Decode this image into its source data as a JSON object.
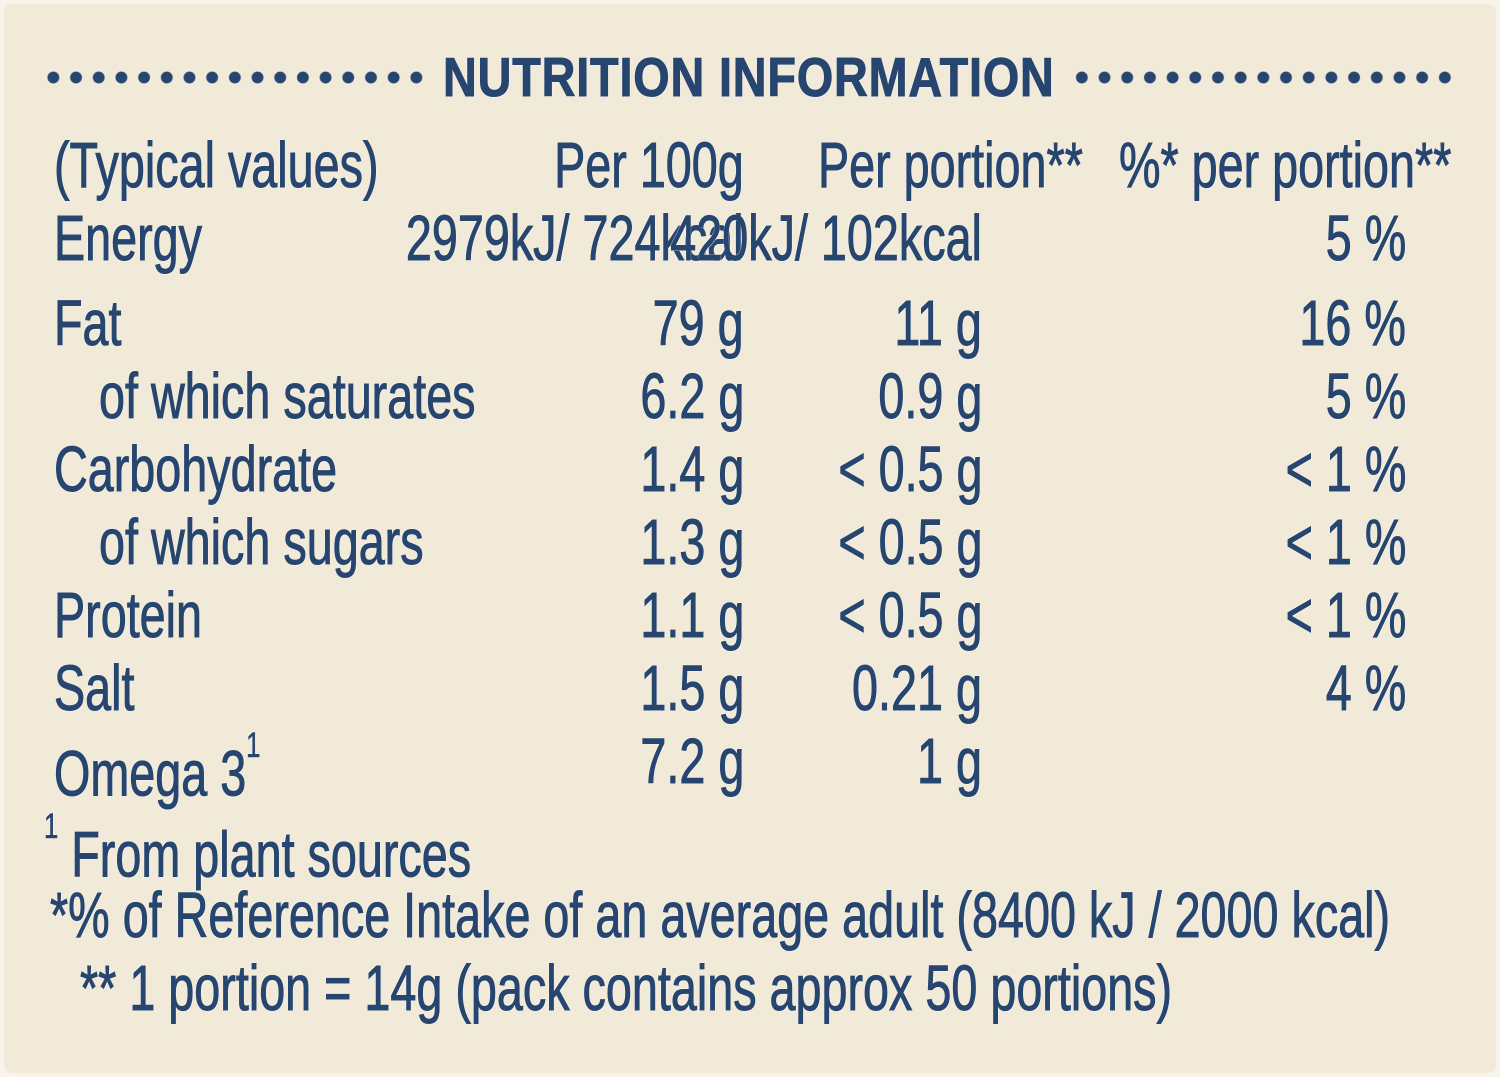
{
  "colors": {
    "background": "#f2ead9",
    "ink": "#26456f"
  },
  "title": "NUTRITION INFORMATION",
  "table": {
    "header": {
      "typical_values": "(Typical values)",
      "per_100g": "Per 100g",
      "per_portion": "Per portion**",
      "ri_per_portion": "%* per portion**"
    },
    "rows": [
      {
        "label": "Energy",
        "per_100g": "2979kJ/ 724kcal",
        "per_portion": "420kJ/ 102kcal",
        "ri_percent": "5 %"
      },
      {
        "label": "Fat",
        "per_100g": "79 g",
        "per_portion": "11 g",
        "ri_percent": "16 %"
      },
      {
        "label": "of which saturates",
        "per_100g": "6.2 g",
        "per_portion": "0.9 g",
        "ri_percent": "5 %"
      },
      {
        "label": "Carbohydrate",
        "per_100g": "1.4 g",
        "per_portion": "< 0.5 g",
        "ri_percent": "< 1 %"
      },
      {
        "label": "of which sugars",
        "per_100g": "1.3 g",
        "per_portion": "< 0.5 g",
        "ri_percent": "< 1 %"
      },
      {
        "label": "Protein",
        "per_100g": "1.1 g",
        "per_portion": "< 0.5 g",
        "ri_percent": "< 1 %"
      },
      {
        "label": "Salt",
        "per_100g": "1.5 g",
        "per_portion": "0.21 g",
        "ri_percent": "4 %"
      },
      {
        "label": "Omega 3",
        "label_superscript": "1",
        "per_100g": "7.2 g",
        "per_portion": "1 g",
        "ri_percent": ""
      }
    ]
  },
  "footnotes": {
    "plant_superscript": "1",
    "plant": "From plant sources",
    "reference_intake": "*% of Reference Intake of an average adult (8400 kJ / 2000 kcal)",
    "portion": "** 1 portion = 14g (pack contains approx 50 portions)"
  }
}
